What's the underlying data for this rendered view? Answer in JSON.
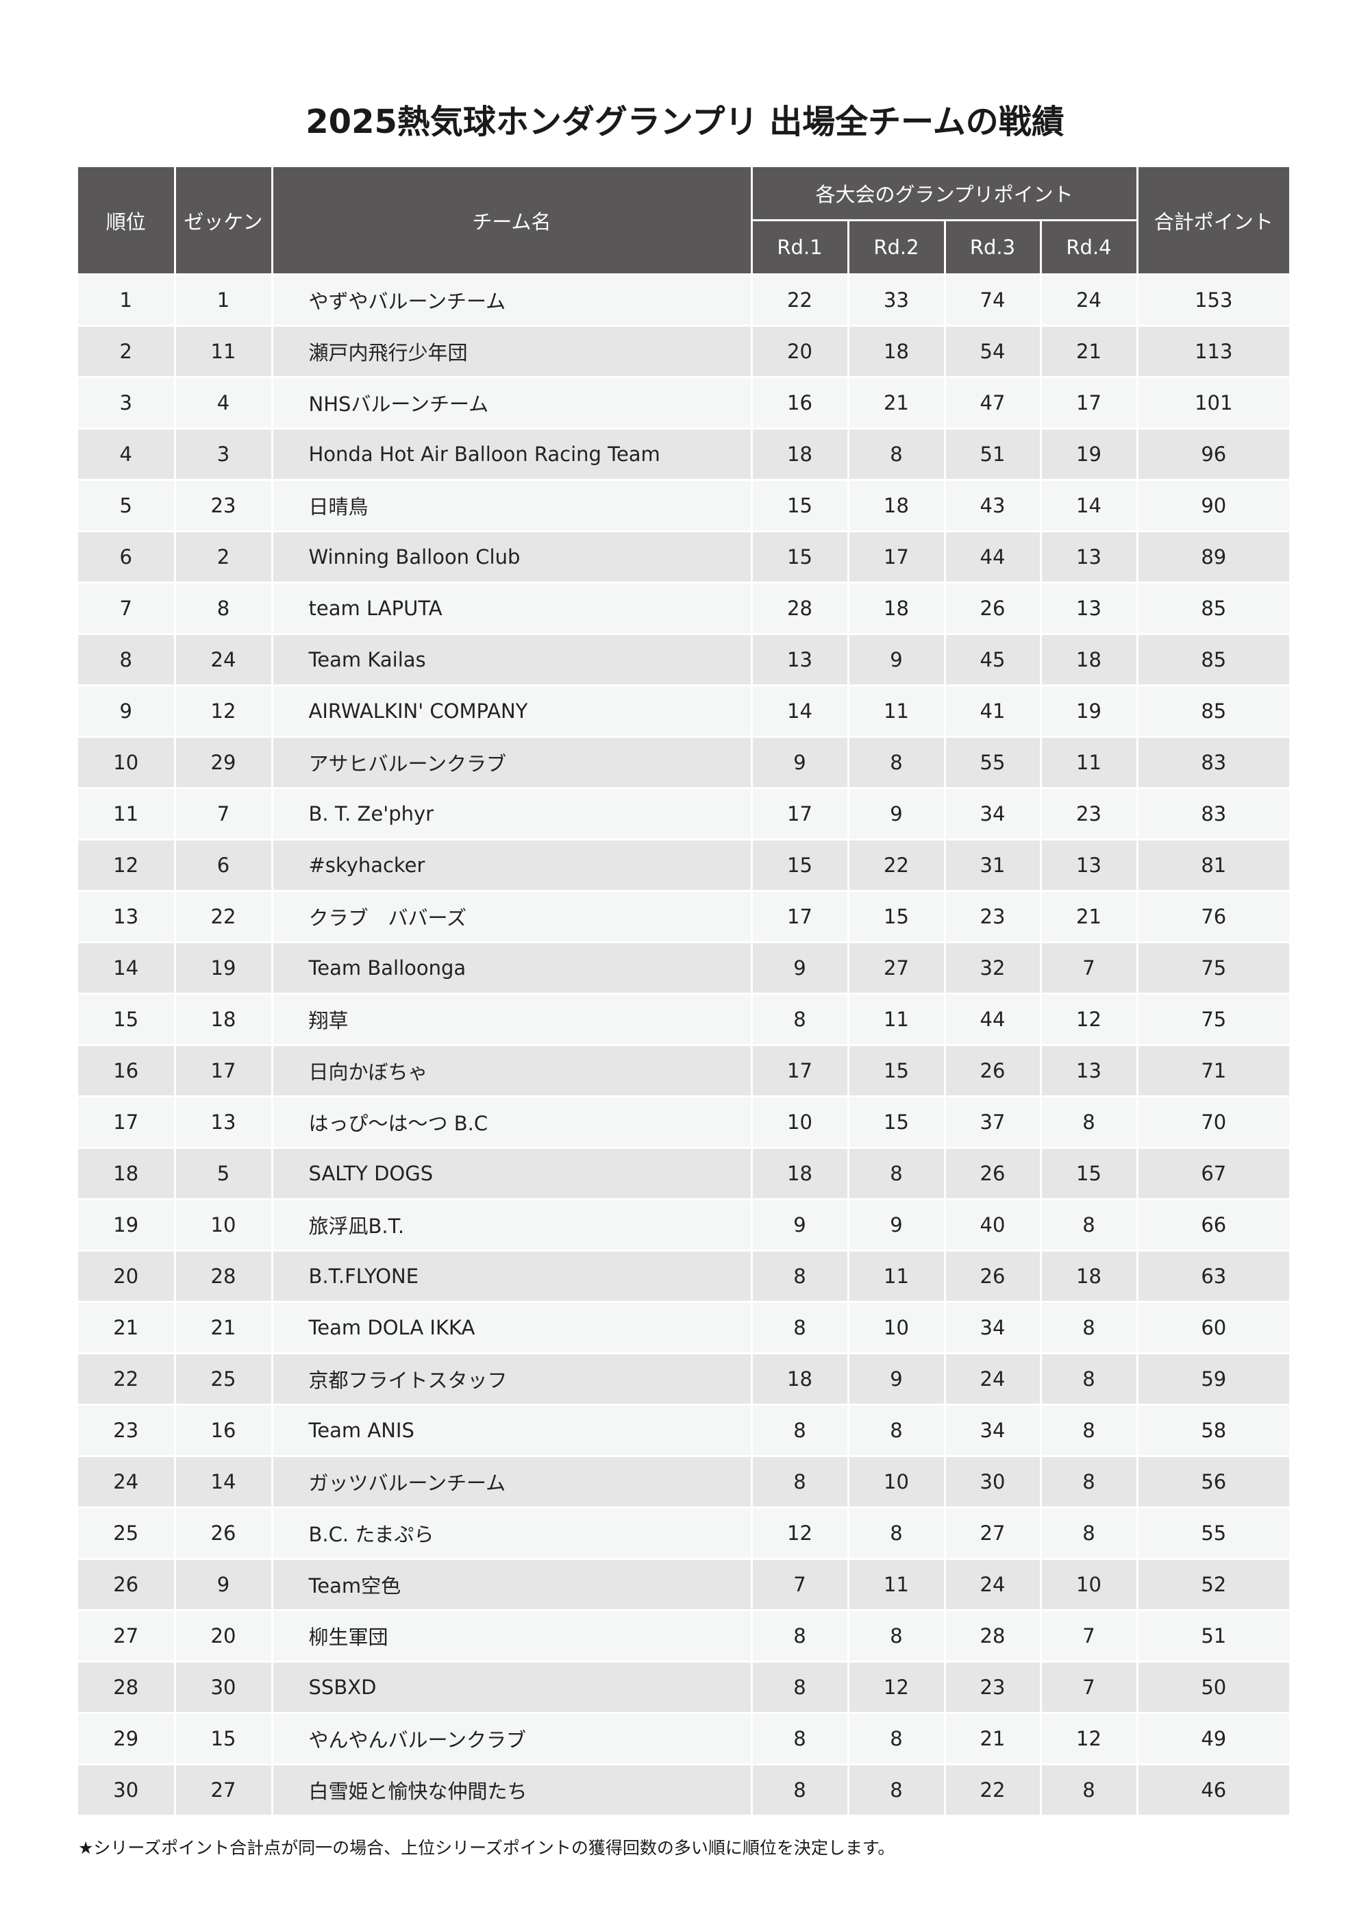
{
  "title": "2025熱気球ホンダグランプリ 出場全チームの戦績",
  "headers": {
    "rank": "順位",
    "bib": "ゼッケン",
    "team": "チーム名",
    "points_group": "各大会のグランプリポイント",
    "rounds": [
      "Rd.1",
      "Rd.2",
      "Rd.3",
      "Rd.4"
    ],
    "total": "合計ポイント"
  },
  "rows": [
    {
      "rank": "1",
      "bib": "1",
      "team": "やずやバルーンチーム",
      "rd": [
        "22",
        "33",
        "74",
        "24"
      ],
      "total": "153"
    },
    {
      "rank": "2",
      "bib": "11",
      "team": "瀬戸内飛行少年団",
      "rd": [
        "20",
        "18",
        "54",
        "21"
      ],
      "total": "113"
    },
    {
      "rank": "3",
      "bib": "4",
      "team": "NHSバルーンチーム",
      "rd": [
        "16",
        "21",
        "47",
        "17"
      ],
      "total": "101"
    },
    {
      "rank": "4",
      "bib": "3",
      "team": "Honda Hot Air Balloon Racing Team",
      "rd": [
        "18",
        "8",
        "51",
        "19"
      ],
      "total": "96"
    },
    {
      "rank": "5",
      "bib": "23",
      "team": "日晴鳥",
      "rd": [
        "15",
        "18",
        "43",
        "14"
      ],
      "total": "90"
    },
    {
      "rank": "6",
      "bib": "2",
      "team": "Winning Balloon Club",
      "rd": [
        "15",
        "17",
        "44",
        "13"
      ],
      "total": "89"
    },
    {
      "rank": "7",
      "bib": "8",
      "team": "team LAPUTA",
      "rd": [
        "28",
        "18",
        "26",
        "13"
      ],
      "total": "85"
    },
    {
      "rank": "8",
      "bib": "24",
      "team": "Team Kailas",
      "rd": [
        "13",
        "9",
        "45",
        "18"
      ],
      "total": "85"
    },
    {
      "rank": "9",
      "bib": "12",
      "team": "AIRWALKIN' COMPANY",
      "rd": [
        "14",
        "11",
        "41",
        "19"
      ],
      "total": "85"
    },
    {
      "rank": "10",
      "bib": "29",
      "team": "アサヒバルーンクラブ",
      "rd": [
        "9",
        "8",
        "55",
        "11"
      ],
      "total": "83"
    },
    {
      "rank": "11",
      "bib": "7",
      "team": "B. T. Ze'phyr",
      "rd": [
        "17",
        "9",
        "34",
        "23"
      ],
      "total": "83"
    },
    {
      "rank": "12",
      "bib": "6",
      "team": "#skyhacker",
      "rd": [
        "15",
        "22",
        "31",
        "13"
      ],
      "total": "81"
    },
    {
      "rank": "13",
      "bib": "22",
      "team": "クラブ　ババーズ",
      "rd": [
        "17",
        "15",
        "23",
        "21"
      ],
      "total": "76"
    },
    {
      "rank": "14",
      "bib": "19",
      "team": "Team Balloonga",
      "rd": [
        "9",
        "27",
        "32",
        "7"
      ],
      "total": "75"
    },
    {
      "rank": "15",
      "bib": "18",
      "team": "翔草",
      "rd": [
        "8",
        "11",
        "44",
        "12"
      ],
      "total": "75"
    },
    {
      "rank": "16",
      "bib": "17",
      "team": "日向かぼちゃ",
      "rd": [
        "17",
        "15",
        "26",
        "13"
      ],
      "total": "71"
    },
    {
      "rank": "17",
      "bib": "13",
      "team": "はっぴ〜は〜つ B.C",
      "rd": [
        "10",
        "15",
        "37",
        "8"
      ],
      "total": "70"
    },
    {
      "rank": "18",
      "bib": "5",
      "team": "SALTY DOGS",
      "rd": [
        "18",
        "8",
        "26",
        "15"
      ],
      "total": "67"
    },
    {
      "rank": "19",
      "bib": "10",
      "team": "旅浮凪B.T.",
      "rd": [
        "9",
        "9",
        "40",
        "8"
      ],
      "total": "66"
    },
    {
      "rank": "20",
      "bib": "28",
      "team": "B.T.FLYONE",
      "rd": [
        "8",
        "11",
        "26",
        "18"
      ],
      "total": "63"
    },
    {
      "rank": "21",
      "bib": "21",
      "team": "Team DOLA IKKA",
      "rd": [
        "8",
        "10",
        "34",
        "8"
      ],
      "total": "60"
    },
    {
      "rank": "22",
      "bib": "25",
      "team": "京都フライトスタッフ",
      "rd": [
        "18",
        "9",
        "24",
        "8"
      ],
      "total": "59"
    },
    {
      "rank": "23",
      "bib": "16",
      "team": "Team ANIS",
      "rd": [
        "8",
        "8",
        "34",
        "8"
      ],
      "total": "58"
    },
    {
      "rank": "24",
      "bib": "14",
      "team": "ガッツバルーンチーム",
      "rd": [
        "8",
        "10",
        "30",
        "8"
      ],
      "total": "56"
    },
    {
      "rank": "25",
      "bib": "26",
      "team": "B.C. たまぷら",
      "rd": [
        "12",
        "8",
        "27",
        "8"
      ],
      "total": "55"
    },
    {
      "rank": "26",
      "bib": "9",
      "team": "Team空色",
      "rd": [
        "7",
        "11",
        "24",
        "10"
      ],
      "total": "52"
    },
    {
      "rank": "27",
      "bib": "20",
      "team": "柳生軍団",
      "rd": [
        "8",
        "8",
        "28",
        "7"
      ],
      "total": "51"
    },
    {
      "rank": "28",
      "bib": "30",
      "team": "SSBXD",
      "rd": [
        "8",
        "12",
        "23",
        "7"
      ],
      "total": "50"
    },
    {
      "rank": "29",
      "bib": "15",
      "team": "やんやんバルーンクラブ",
      "rd": [
        "8",
        "8",
        "21",
        "12"
      ],
      "total": "49"
    },
    {
      "rank": "30",
      "bib": "27",
      "team": "白雪姫と愉快な仲間たち",
      "rd": [
        "8",
        "8",
        "22",
        "8"
      ],
      "total": "46"
    }
  ],
  "footnote": "★シリーズポイント合計点が同一の場合、上位シリーズポイントの獲得回数の多い順に順位を決定します。",
  "colors": {
    "header_bg": "#595757",
    "row_light": "#f5f6f6",
    "row_dark": "#e6e6e6"
  }
}
